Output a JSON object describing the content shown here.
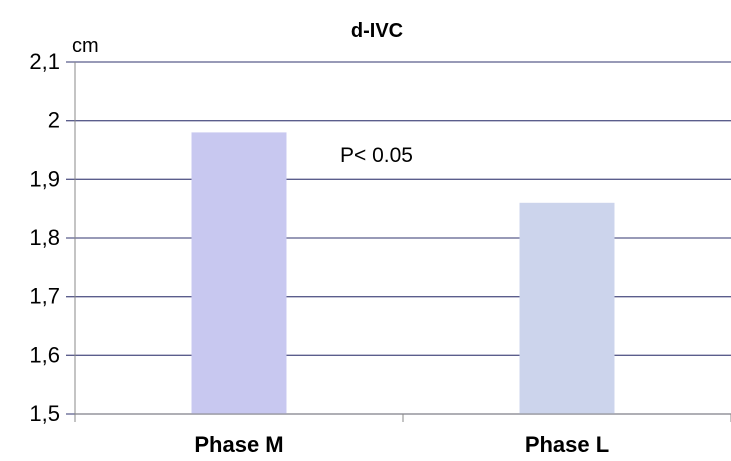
{
  "chart_data": {
    "type": "bar",
    "title": "d-IVC",
    "ylabel": "cm",
    "xlabel": "",
    "categories": [
      "Phase M",
      "Phase L"
    ],
    "values": [
      1.98,
      1.86
    ],
    "ylim": [
      1.5,
      2.1
    ],
    "yticks": [
      1.5,
      1.6,
      1.7,
      1.8,
      1.9,
      2.0,
      2.1
    ],
    "ytick_labels": [
      "1,5",
      "1,6",
      "1,7",
      "1,8",
      "1,9",
      "2",
      "2,1"
    ],
    "bar_colors": [
      "#c8c8f0",
      "#ccd4ec"
    ],
    "grid": true,
    "annotation": "P< 0.05"
  }
}
